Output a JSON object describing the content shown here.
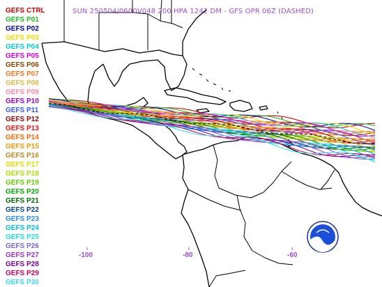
{
  "header": {
    "title": "SUN 250504/0600V048  200 HPA 1242 DM - GFS OPR 06Z (DASHED)"
  },
  "legend": {
    "members": [
      {
        "label": "GEFS CTRL",
        "color": "#cc0000"
      },
      {
        "label": "GEFS P01",
        "color": "#22bb22"
      },
      {
        "label": "GEFS P02",
        "color": "#0000aa"
      },
      {
        "label": "GEFS P03",
        "color": "#eedd00"
      },
      {
        "label": "GEFS P04",
        "color": "#00cccc"
      },
      {
        "label": "GEFS P05",
        "color": "#dd00dd"
      },
      {
        "label": "GEFS P06",
        "color": "#884400"
      },
      {
        "label": "GEFS P07",
        "color": "#ee7722"
      },
      {
        "label": "GEFS P08",
        "color": "#ddbb44"
      },
      {
        "label": "GEFS P09",
        "color": "#ff88aa"
      },
      {
        "label": "GEFS P10",
        "color": "#9900cc"
      },
      {
        "label": "GEFS P11",
        "color": "#3355ff"
      },
      {
        "label": "GEFS P12",
        "color": "#990000"
      },
      {
        "label": "GEFS P13",
        "color": "#ee1111"
      },
      {
        "label": "GEFS P14",
        "color": "#ff6600"
      },
      {
        "label": "GEFS P15",
        "color": "#ee9900"
      },
      {
        "label": "GEFS P16",
        "color": "#bb8822"
      },
      {
        "label": "GEFS P17",
        "color": "#dddd00"
      },
      {
        "label": "GEFS P18",
        "color": "#aadd00"
      },
      {
        "label": "GEFS P19",
        "color": "#66cc00"
      },
      {
        "label": "GEFS P20",
        "color": "#00aa00"
      },
      {
        "label": "GEFS P21",
        "color": "#006600"
      },
      {
        "label": "GEFS P22",
        "color": "#004488"
      },
      {
        "label": "GEFS P23",
        "color": "#2288ff"
      },
      {
        "label": "GEFS P24",
        "color": "#00bbee"
      },
      {
        "label": "GEFS P25",
        "color": "#22dddd"
      },
      {
        "label": "GEFS P26",
        "color": "#7766cc"
      },
      {
        "label": "GEFS P27",
        "color": "#9933cc"
      },
      {
        "label": "GEFS P28",
        "color": "#770099"
      },
      {
        "label": "GEFS P29",
        "color": "#cc0055"
      },
      {
        "label": "GEFS P30",
        "color": "#33ddee"
      }
    ]
  },
  "axes": {
    "lon_labels": [
      "-100",
      "-80",
      "-60"
    ]
  },
  "logo": {
    "text": "NOAA"
  }
}
